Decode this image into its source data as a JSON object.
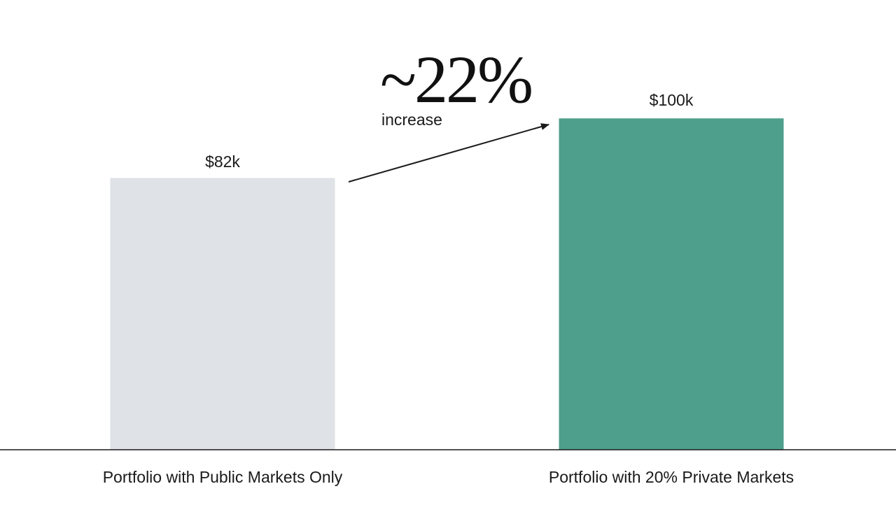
{
  "chart_data": {
    "type": "bar",
    "categories": [
      "Portfolio with Public Markets Only",
      "Portfolio with 20% Private Markets"
    ],
    "values": [
      82,
      100
    ],
    "data_labels": [
      "$82k",
      "$100k"
    ],
    "unit": "$k",
    "ylim": [
      0,
      122
    ],
    "grid": false,
    "axis_visible": false,
    "title": "",
    "xlabel": "",
    "ylabel": "",
    "annotation": {
      "value": "~22%",
      "label": "increase",
      "arrow_from": "Portfolio with Public Markets Only",
      "arrow_to": "Portfolio with 20% Private Markets"
    },
    "colors": [
      "#dfe2e6",
      "#4e9f8c"
    ]
  },
  "colors": {
    "baseline": "#1a1a1a",
    "text": "#1a1a1a"
  }
}
